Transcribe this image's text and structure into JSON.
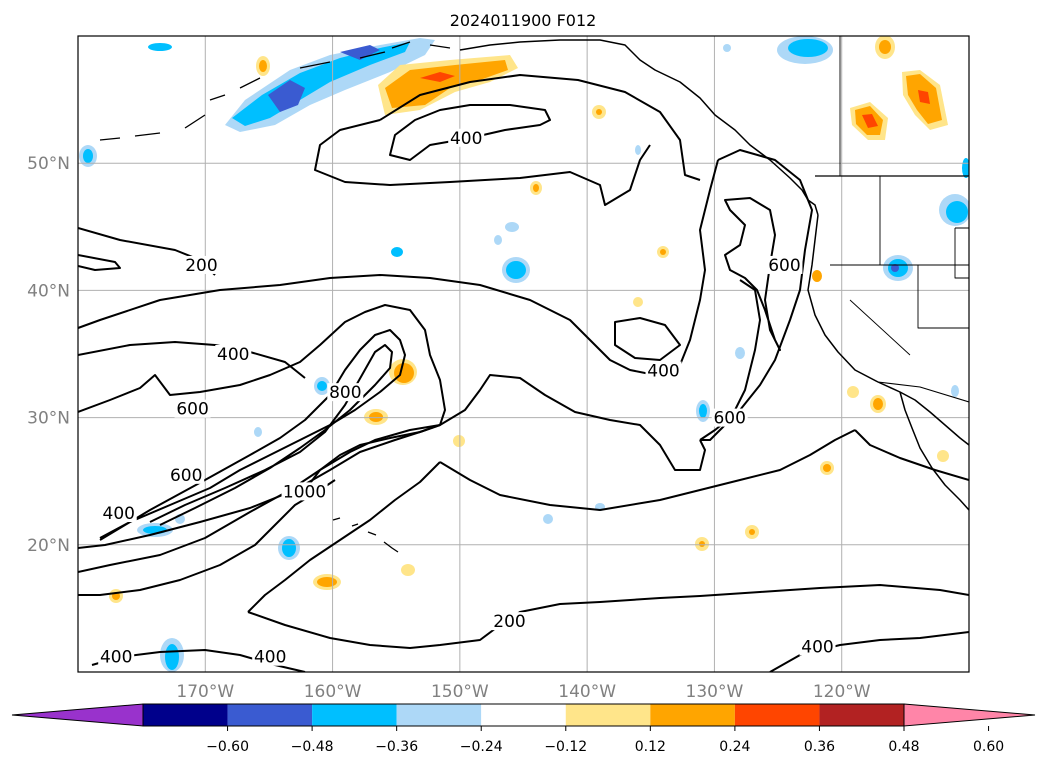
{
  "title": "2024011900 F012",
  "lat_labels": [
    {
      "label": "50°N",
      "lat": 50
    },
    {
      "label": "40°N",
      "lat": 40
    },
    {
      "label": "30°N",
      "lat": 30
    },
    {
      "label": "20°N",
      "lat": 20
    }
  ],
  "lon_labels": [
    {
      "label": "170°W",
      "lon": -170
    },
    {
      "label": "160°W",
      "lon": -160
    },
    {
      "label": "150°W",
      "lon": -150
    },
    {
      "label": "140°W",
      "lon": -140
    },
    {
      "label": "130°W",
      "lon": -130
    },
    {
      "label": "120°W",
      "lon": -120
    }
  ],
  "extent": {
    "lon_min": -180,
    "lon_max": -110,
    "lat_min": 10,
    "lat_max": 60
  },
  "contour_labels": [
    {
      "text": "400",
      "lon": -149.5,
      "lat": 52.0
    },
    {
      "text": "200",
      "lon": -170.3,
      "lat": 42.0
    },
    {
      "text": "600",
      "lon": -124.5,
      "lat": 42.0
    },
    {
      "text": "400",
      "lon": -167.8,
      "lat": 35.0
    },
    {
      "text": "800",
      "lon": -159.0,
      "lat": 32.0
    },
    {
      "text": "400",
      "lon": -134.0,
      "lat": 33.7
    },
    {
      "text": "600",
      "lon": -171.0,
      "lat": 30.7
    },
    {
      "text": "600",
      "lon": -128.8,
      "lat": 30.0
    },
    {
      "text": "600",
      "lon": -171.5,
      "lat": 25.5
    },
    {
      "text": "1000",
      "lon": -162.2,
      "lat": 24.2
    },
    {
      "text": "400",
      "lon": -176.8,
      "lat": 22.5
    },
    {
      "text": "200",
      "lon": -146.1,
      "lat": 14.0
    },
    {
      "text": "400",
      "lon": -177.0,
      "lat": 11.2
    },
    {
      "text": "400",
      "lon": -164.9,
      "lat": 11.2
    },
    {
      "text": "400",
      "lon": -121.9,
      "lat": 12.0
    }
  ],
  "colorbar": {
    "colors": [
      "#9932cc",
      "#00008b",
      "#3a5bd1",
      "#00bfff",
      "#add8f7",
      "#ffffff",
      "#ffe58a",
      "#ffa500",
      "#ff4500",
      "#b22222",
      "#ff85a8"
    ],
    "tick_labels": [
      "−0.60",
      "−0.48",
      "−0.36",
      "−0.24",
      "−0.12",
      "0.12",
      "0.24",
      "0.36",
      "0.48",
      "0.60"
    ]
  }
}
